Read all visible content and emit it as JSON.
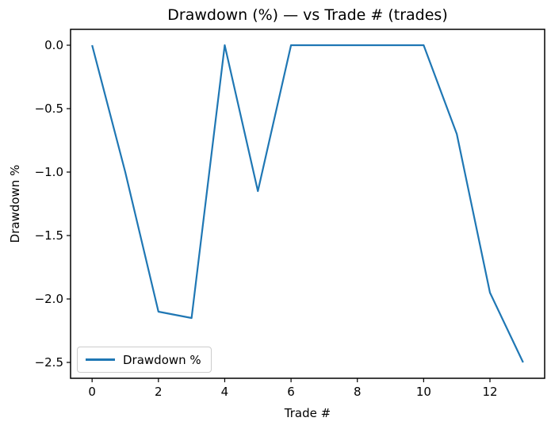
{
  "chart_data": {
    "type": "line",
    "title": "Drawdown (%) — vs Trade # (trades)",
    "xlabel": "Trade #",
    "ylabel": "Drawdown %",
    "legend": [
      "Drawdown %"
    ],
    "legend_position": "lower left",
    "line_color": "#1f77b4",
    "background_color": "#ffffff",
    "grid": false,
    "x": [
      0,
      1,
      2,
      3,
      4,
      5,
      6,
      7,
      8,
      9,
      10,
      11,
      12,
      13
    ],
    "y": [
      0.0,
      -1.0,
      -2.1,
      -2.15,
      0.0,
      -1.15,
      0.0,
      0.0,
      0.0,
      0.0,
      0.0,
      -0.7,
      -1.95,
      -2.5
    ],
    "xlim": [
      -0.65,
      13.65
    ],
    "ylim": [
      -2.625,
      0.125
    ],
    "xticks": [
      0,
      2,
      4,
      6,
      8,
      10,
      12
    ],
    "xtick_labels": [
      "0",
      "2",
      "4",
      "6",
      "8",
      "10",
      "12"
    ],
    "yticks": [
      0.0,
      -0.5,
      -1.0,
      -1.5,
      -2.0,
      -2.5
    ],
    "ytick_labels": [
      "0.0",
      "−0.5",
      "−1.0",
      "−1.5",
      "−2.0",
      "−2.5"
    ]
  }
}
